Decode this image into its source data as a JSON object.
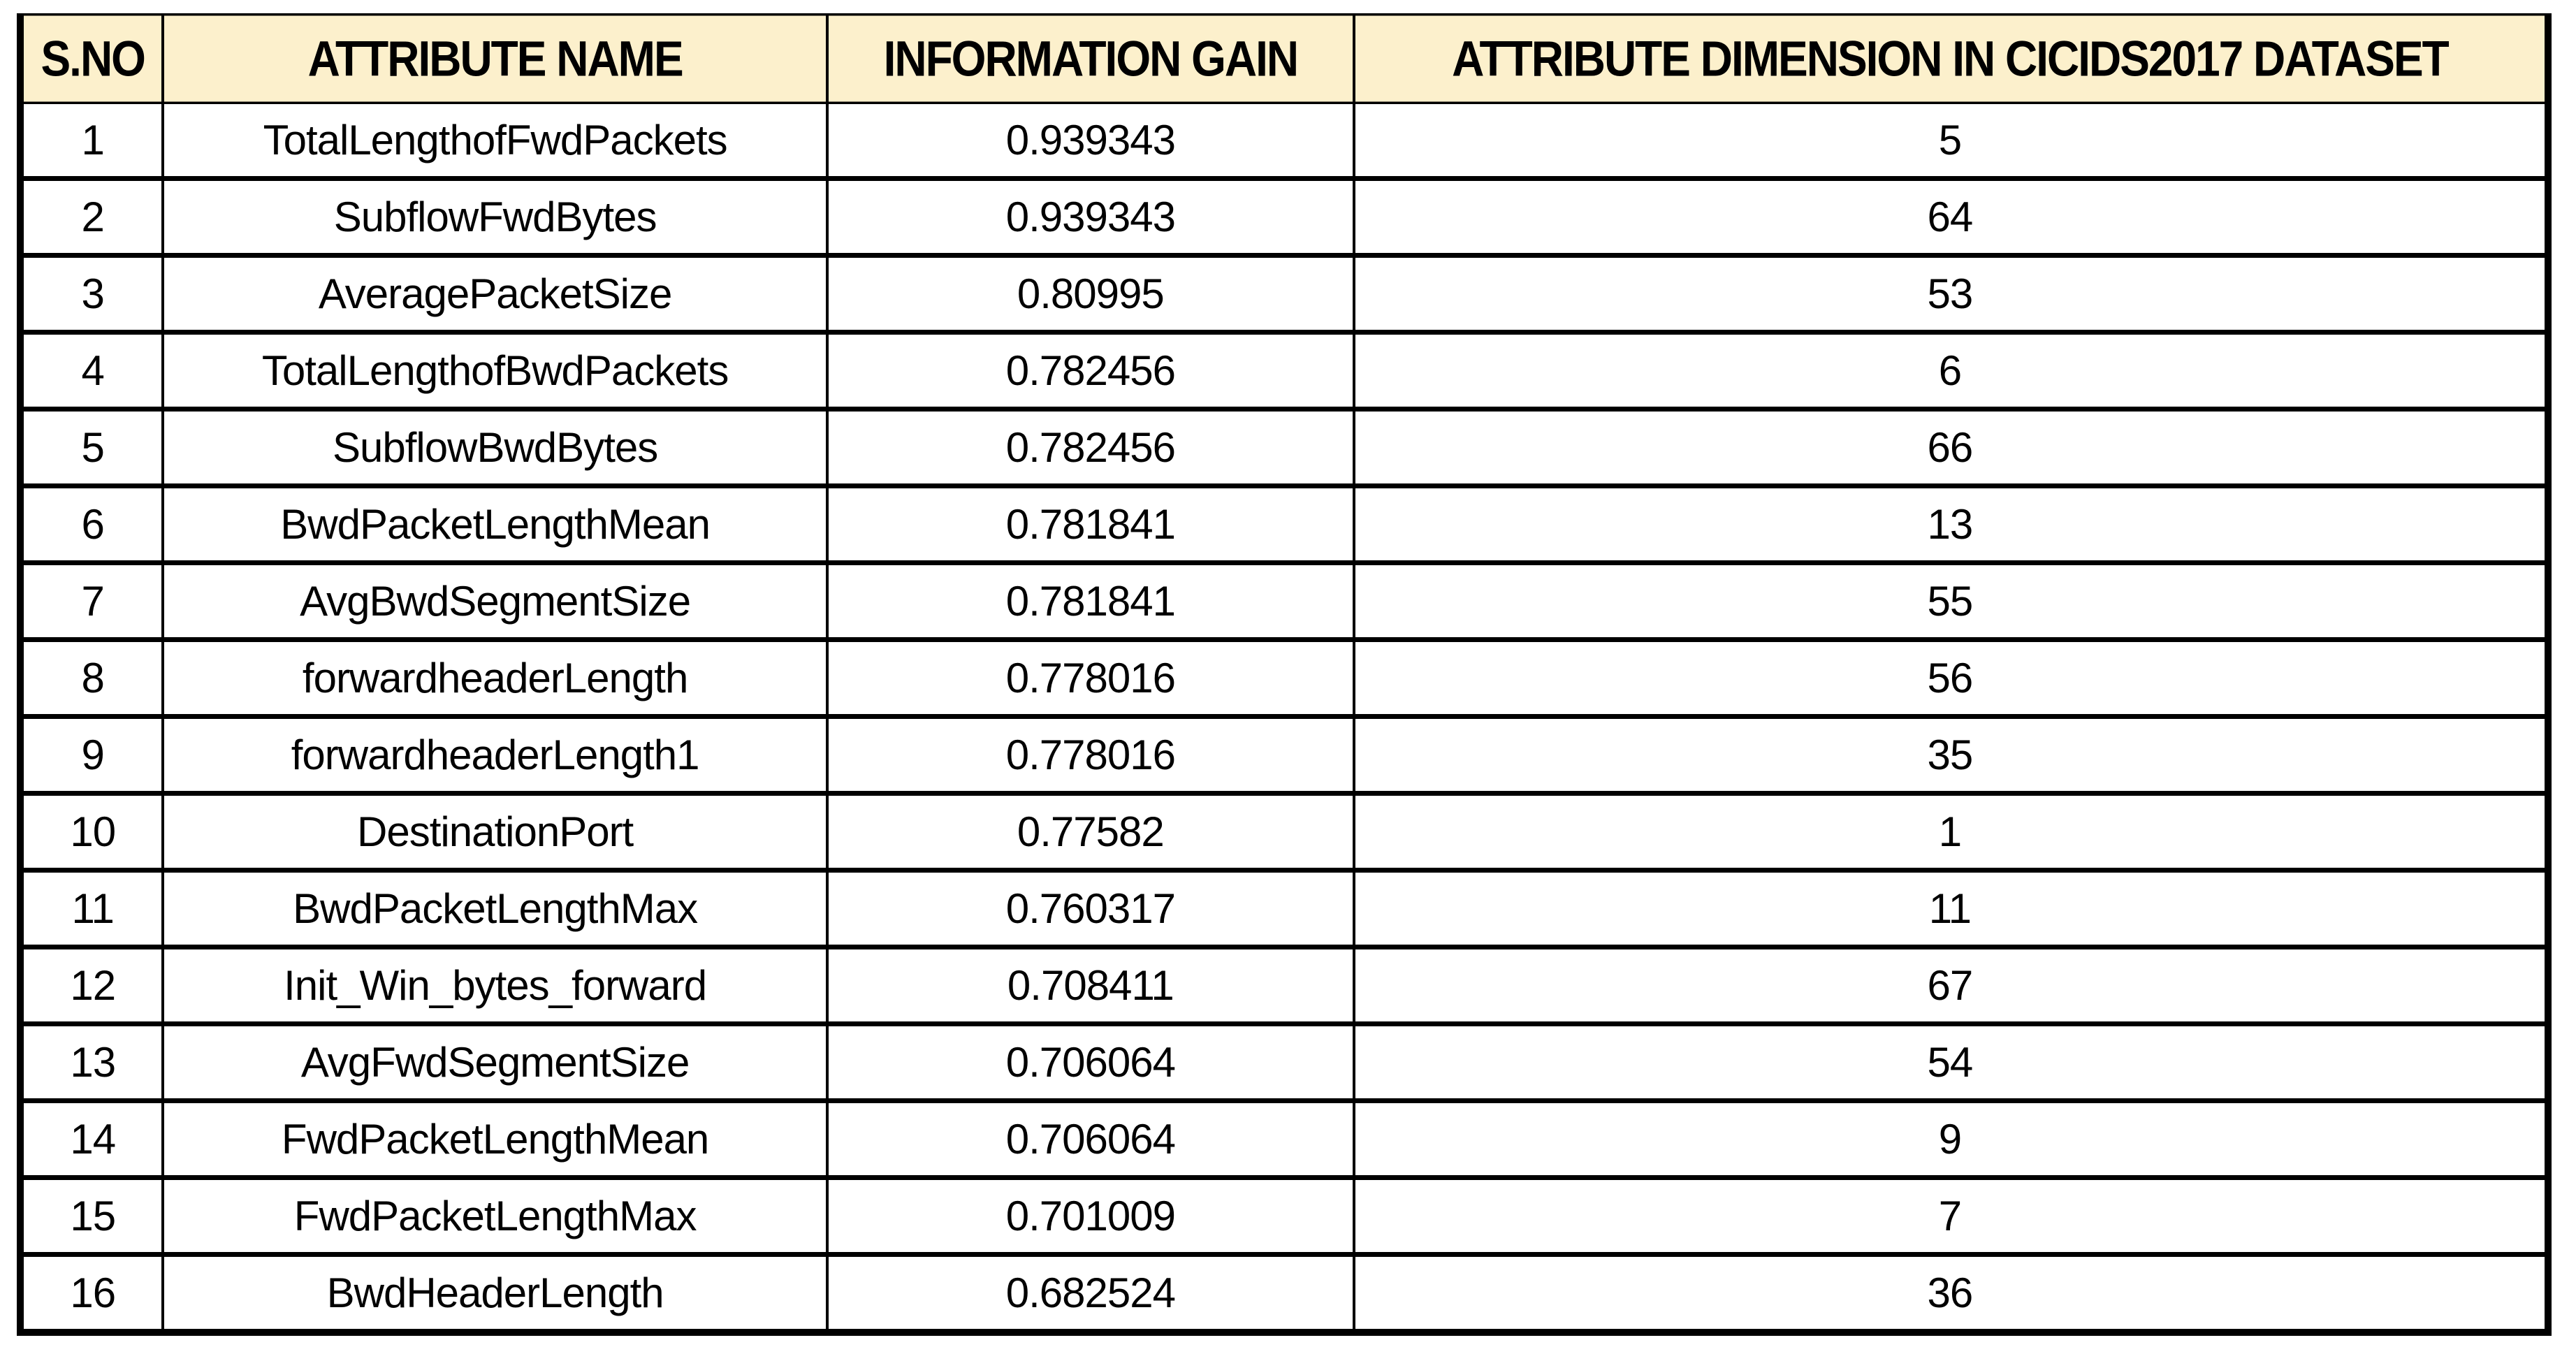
{
  "table": {
    "columns": [
      "S.NO",
      "ATTRIBUTE NAME",
      "INFORMATION GAIN",
      "ATTRIBUTE DIMENSION IN CICIDS2017 DATASET"
    ],
    "rows": [
      [
        "1",
        "TotalLengthofFwdPackets",
        "0.939343",
        "5"
      ],
      [
        "2",
        "SubflowFwdBytes",
        "0.939343",
        "64"
      ],
      [
        "3",
        "AveragePacketSize",
        "0.80995",
        "53"
      ],
      [
        "4",
        "TotalLengthofBwdPackets",
        "0.782456",
        "6"
      ],
      [
        "5",
        "SubflowBwdBytes",
        "0.782456",
        "66"
      ],
      [
        "6",
        "BwdPacketLengthMean",
        "0.781841",
        "13"
      ],
      [
        "7",
        "AvgBwdSegmentSize",
        "0.781841",
        "55"
      ],
      [
        "8",
        "forwardheaderLength",
        "0.778016",
        "56"
      ],
      [
        "9",
        "forwardheaderLength1",
        "0.778016",
        "35"
      ],
      [
        "10",
        "DestinationPort",
        "0.77582",
        "1"
      ],
      [
        "11",
        "BwdPacketLengthMax",
        "0.760317",
        "11"
      ],
      [
        "12",
        "Init_Win_bytes_forward",
        "0.708411",
        "67"
      ],
      [
        "13",
        "AvgFwdSegmentSize",
        "0.706064",
        "54"
      ],
      [
        "14",
        "FwdPacketLengthMean",
        "0.706064",
        "9"
      ],
      [
        "15",
        "FwdPacketLengthMax",
        "0.701009",
        "7"
      ],
      [
        "16",
        "BwdHeaderLength",
        "0.682524",
        "36"
      ]
    ],
    "colors": {
      "header_background": "#FCF0CC",
      "border": "#000000",
      "text": "#000000",
      "page_background": "#FFFFFF"
    }
  }
}
